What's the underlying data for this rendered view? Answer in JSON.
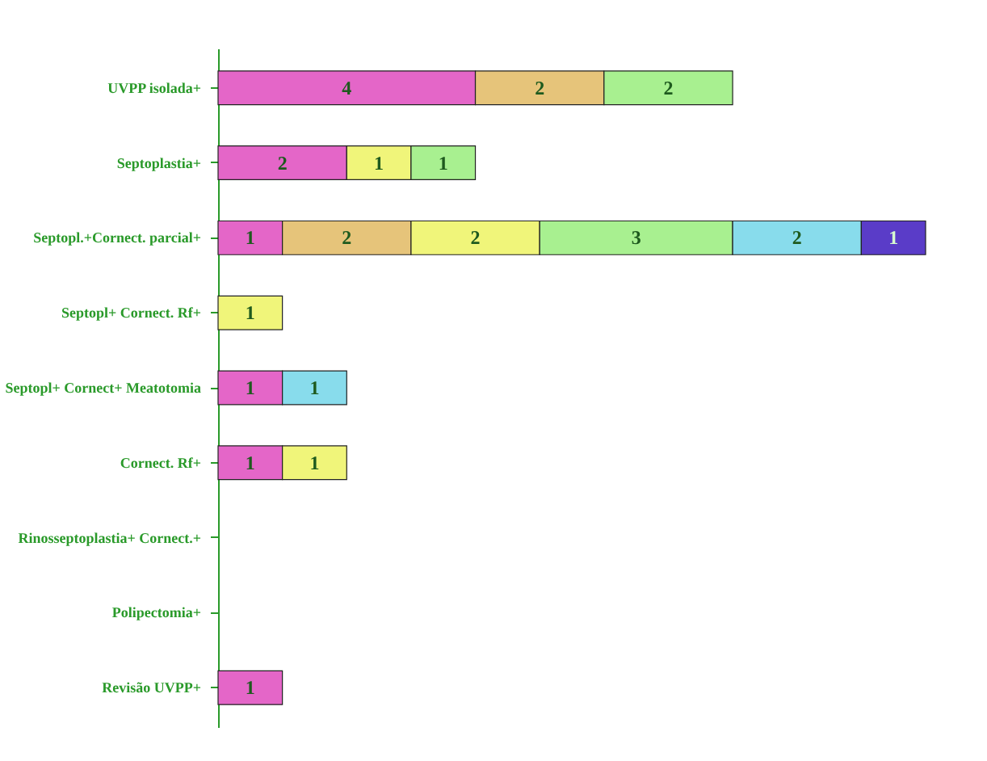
{
  "chart_data": {
    "type": "bar",
    "orientation": "horizontal",
    "stacked": true,
    "data_labels": true,
    "categories": [
      "UVPP isolada+",
      "Septoplastia+",
      "Septopl.+Cornect. parcial+",
      "Septopl+ Cornect. Rf+",
      "Septopl+ Cornect+ Meatotomia",
      "Cornect. Rf+",
      "Rinosseptoplastia+ Cornect.+",
      "Polipectomia+",
      "Revisão UVPP+"
    ],
    "series": [
      {
        "color": "#e466c8",
        "values": [
          4,
          2,
          1,
          null,
          1,
          1,
          null,
          null,
          1
        ]
      },
      {
        "color": "#e6c47a",
        "values": [
          2,
          null,
          2,
          null,
          null,
          null,
          null,
          null,
          null
        ]
      },
      {
        "color": "#f0f57a",
        "values": [
          null,
          1,
          2,
          1,
          null,
          1,
          null,
          null,
          null
        ]
      },
      {
        "color": "#a8f090",
        "values": [
          2,
          1,
          3,
          null,
          null,
          null,
          null,
          null,
          null
        ]
      },
      {
        "color": "#88dcec",
        "values": [
          null,
          null,
          2,
          null,
          1,
          null,
          null,
          null,
          null
        ]
      },
      {
        "color": "#5a3cc8",
        "values": [
          null,
          null,
          1,
          null,
          null,
          null,
          null,
          null,
          null
        ]
      }
    ]
  }
}
